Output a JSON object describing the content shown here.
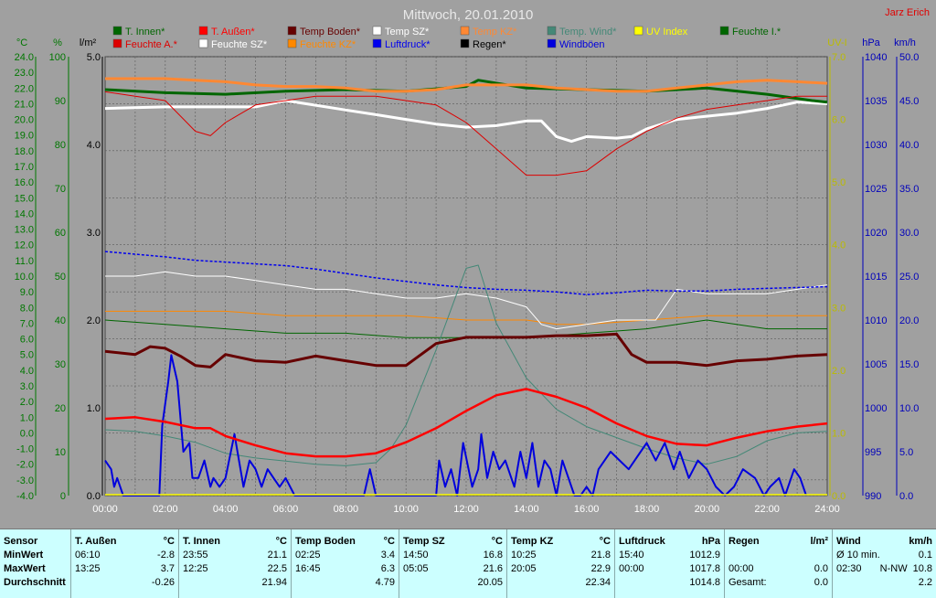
{
  "title": "Mittwoch, 20.01.2010",
  "author": "Jarz Erich",
  "axes": {
    "units": {
      "temp": "°C",
      "pct": "%",
      "rain": "l/m²",
      "uv": "UV-I",
      "hpa": "hPa",
      "kmh": "km/h"
    },
    "temp_ticks": [
      "24.0",
      "23.0",
      "22.0",
      "21.0",
      "20.0",
      "19.0",
      "18.0",
      "17.0",
      "16.0",
      "15.0",
      "14.0",
      "13.0",
      "12.0",
      "11.0",
      "10.0",
      "9.0",
      "8.0",
      "7.0",
      "6.0",
      "5.0",
      "4.0",
      "3.0",
      "2.0",
      "1.0",
      "0.0",
      "-1.0",
      "-2.0",
      "-3.0",
      "-4.0"
    ],
    "pct_ticks": [
      "100",
      "90",
      "80",
      "70",
      "60",
      "50",
      "40",
      "30",
      "20",
      "10",
      "0"
    ],
    "rain_ticks": [
      "5.0",
      "4.0",
      "3.0",
      "2.0",
      "1.0",
      "0.0"
    ],
    "uv_ticks": [
      "7.0",
      "6.0",
      "5.0",
      "4.0",
      "3.0",
      "2.0",
      "1.0",
      "0.0"
    ],
    "hpa_ticks": [
      "1040",
      "1035",
      "1030",
      "1025",
      "1020",
      "1015",
      "1010",
      "1005",
      "1000",
      "995",
      "990"
    ],
    "kmh_ticks": [
      "50.0",
      "45.0",
      "40.0",
      "35.0",
      "30.0",
      "25.0",
      "20.0",
      "15.0",
      "10.0",
      "5.0",
      "0.0"
    ],
    "time_ticks": [
      "00:00",
      "02:00",
      "04:00",
      "06:00",
      "08:00",
      "10:00",
      "12:00",
      "14:00",
      "16:00",
      "18:00",
      "20:00",
      "22:00",
      "24:00"
    ]
  },
  "colors": {
    "t_innen": "#006600",
    "t_aussen": "#ff0000",
    "temp_boden": "#660000",
    "temp_sz": "#ffffff",
    "temp_kz": "#ff8833",
    "temp_wind": "#448877",
    "uv": "#ffff00",
    "feuchte_i": "#006600",
    "feuchte_a": "#dd0000",
    "feuchte_sz": "#ffffff",
    "feuchte_kz": "#ff8800",
    "luftdruck": "#0000ee",
    "regen": "#000000",
    "windboeen": "#0000dd",
    "temp_axis": "#007700",
    "uv_axis": "#bbbb00",
    "hpa_axis": "#0000bb",
    "plot_bg": "#a0a0a0",
    "grid": "#5a5a5a"
  },
  "legend": [
    {
      "label": "T. Innen*",
      "color": "#006600"
    },
    {
      "label": "T. Außen*",
      "color": "#ff0000"
    },
    {
      "label": "Temp Boden*",
      "color": "#660000"
    },
    {
      "label": "Temp SZ*",
      "color": "#ffffff"
    },
    {
      "label": "Temp KZ*",
      "color": "#ff8833"
    },
    {
      "label": "Temp. Wind*",
      "color": "#448877"
    },
    {
      "label": "UV Index",
      "color": "#ffff00"
    },
    {
      "label": "Feuchte I.*",
      "color": "#006600"
    },
    {
      "label": "Feuchte A.*",
      "color": "#dd0000"
    },
    {
      "label": "Feuchte SZ*",
      "color": "#ffffff"
    },
    {
      "label": "Feuchte KZ*",
      "color": "#ff8800"
    },
    {
      "label": "Luftdruck*",
      "color": "#0000ee"
    },
    {
      "label": "Regen*",
      "color": "#000000"
    },
    {
      "label": "Windböen",
      "color": "#0000dd"
    }
  ],
  "chart_data": {
    "type": "line",
    "title": "Mittwoch, 20.01.2010",
    "x_unit": "hours",
    "xlim": [
      0,
      24
    ],
    "temp_ylim": [
      -4,
      24
    ],
    "pct_ylim": [
      0,
      100
    ],
    "rain_ylim": [
      0,
      5
    ],
    "uv_ylim": [
      0,
      7
    ],
    "hpa_ylim": [
      990,
      1040
    ],
    "kmh_ylim": [
      0,
      50
    ],
    "grid": true,
    "series": [
      {
        "name": "T. Innen*",
        "axis": "temp",
        "x": [
          0,
          2,
          4,
          6,
          8,
          10,
          12,
          12.4,
          14,
          16,
          18,
          20,
          22,
          23.5,
          24
        ],
        "y": [
          21.9,
          21.7,
          21.6,
          21.8,
          21.9,
          21.8,
          22.1,
          22.5,
          22.0,
          21.9,
          21.8,
          22.0,
          21.6,
          21.2,
          21.1
        ]
      },
      {
        "name": "T. Außen*",
        "axis": "temp",
        "x": [
          0,
          1,
          2,
          3,
          3.5,
          4,
          5,
          6,
          7,
          8,
          9,
          10,
          11,
          12,
          13,
          14,
          15,
          16,
          17,
          18,
          19,
          20,
          21,
          22,
          23,
          24
        ],
        "y": [
          0.9,
          1.0,
          0.7,
          0.3,
          0.3,
          -0.2,
          -0.8,
          -1.3,
          -1.5,
          -1.5,
          -1.3,
          -0.6,
          0.3,
          1.4,
          2.4,
          2.8,
          2.3,
          1.6,
          0.6,
          -0.2,
          -0.7,
          -0.8,
          -0.3,
          0.1,
          0.4,
          0.6
        ]
      },
      {
        "name": "Temp Boden*",
        "axis": "temp",
        "x": [
          0,
          1,
          1.5,
          2,
          2.5,
          3,
          3.5,
          4,
          5,
          6,
          7,
          8,
          9,
          10,
          11,
          12,
          13,
          14,
          15,
          16,
          17,
          17.5,
          18,
          19,
          20,
          21,
          22,
          23,
          24
        ],
        "y": [
          5.2,
          5.0,
          5.5,
          5.4,
          4.9,
          4.3,
          4.2,
          5.0,
          4.6,
          4.5,
          4.9,
          4.6,
          4.3,
          4.3,
          5.7,
          6.1,
          6.1,
          6.1,
          6.2,
          6.2,
          6.3,
          5.0,
          4.5,
          4.5,
          4.3,
          4.6,
          4.7,
          4.9,
          5.0
        ]
      },
      {
        "name": "Temp SZ*",
        "axis": "temp",
        "x": [
          0,
          2,
          3,
          4,
          5,
          6,
          7,
          8,
          9,
          10,
          11,
          12,
          13,
          14,
          14.5,
          15,
          15.5,
          16,
          17,
          17.5,
          18,
          19,
          20,
          21,
          22,
          23,
          24
        ],
        "y": [
          20.7,
          20.8,
          20.8,
          20.8,
          20.8,
          21.2,
          20.9,
          20.6,
          20.3,
          20.0,
          19.7,
          19.5,
          19.6,
          19.9,
          19.9,
          18.9,
          18.6,
          18.9,
          18.8,
          18.9,
          19.4,
          20.0,
          20.2,
          20.4,
          20.7,
          21.1,
          21.0
        ]
      },
      {
        "name": "Temp KZ*",
        "axis": "temp",
        "x": [
          0,
          1,
          2,
          3,
          4,
          5,
          6,
          7,
          8,
          9,
          10,
          11,
          12,
          13,
          14,
          15,
          16,
          17,
          18,
          19,
          20,
          21,
          22,
          23,
          24
        ],
        "y": [
          22.6,
          22.6,
          22.6,
          22.5,
          22.4,
          22.2,
          22.1,
          22.1,
          22.0,
          21.8,
          21.8,
          21.9,
          22.2,
          22.2,
          22.2,
          22.0,
          21.9,
          21.8,
          21.8,
          22.0,
          22.2,
          22.4,
          22.5,
          22.4,
          22.3
        ]
      },
      {
        "name": "Temp. Wind*",
        "axis": "temp",
        "x": [
          0,
          1,
          2,
          3,
          4,
          5,
          6,
          7,
          8,
          9,
          9.5,
          10,
          11,
          12,
          12.4,
          13,
          14,
          15,
          16,
          17,
          18,
          19,
          20,
          21,
          22,
          23,
          24
        ],
        "y": [
          0.2,
          0.1,
          -0.2,
          -0.6,
          -1.3,
          -1.6,
          -1.8,
          -2.0,
          -2.1,
          -1.9,
          -1.0,
          0.5,
          5.3,
          10.5,
          10.7,
          7.0,
          3.5,
          1.5,
          0.4,
          -0.3,
          -1.0,
          -1.6,
          -2.0,
          -1.5,
          -0.5,
          0.0,
          0.1
        ]
      },
      {
        "name": "Feuchte I.*",
        "axis": "pct",
        "x": [
          0,
          2,
          4,
          6,
          8,
          10,
          12,
          14,
          16,
          18,
          20,
          22,
          24
        ],
        "y": [
          40,
          39,
          38,
          37,
          37,
          36,
          36,
          36,
          37,
          38,
          40,
          38,
          38
        ]
      },
      {
        "name": "Feuchte A.*",
        "axis": "pct",
        "x": [
          0,
          1,
          2,
          3,
          3.5,
          4,
          5,
          6,
          7,
          8,
          9,
          10,
          11,
          12,
          13,
          14,
          15,
          16,
          17,
          18,
          19,
          20,
          21,
          22,
          23,
          24
        ],
        "y": [
          92,
          91,
          90,
          83,
          82,
          85,
          89,
          90,
          91,
          91,
          91,
          90,
          89,
          85,
          79,
          73,
          73,
          74,
          79,
          83,
          86,
          88,
          89,
          90,
          91,
          91
        ]
      },
      {
        "name": "Feuchte SZ*",
        "axis": "pct",
        "x": [
          0,
          1,
          2,
          3,
          4,
          5,
          6,
          7,
          8,
          9,
          10,
          11,
          12,
          13,
          14,
          14.5,
          15,
          16,
          17,
          18,
          18.3,
          19,
          20,
          21,
          22,
          23,
          24
        ],
        "y": [
          50,
          50,
          51,
          50,
          50,
          49,
          48,
          47,
          47,
          46,
          45,
          45,
          46,
          45,
          43,
          39,
          38,
          39,
          40,
          40,
          40,
          47,
          46,
          46,
          46,
          47,
          48
        ]
      },
      {
        "name": "Feuchte KZ*",
        "axis": "pct",
        "x": [
          0,
          2,
          4,
          6,
          8,
          10,
          12,
          14,
          15,
          16,
          18,
          20,
          22,
          24
        ],
        "y": [
          42,
          42,
          42,
          41,
          41,
          41,
          40,
          40,
          39,
          39,
          40,
          41,
          41,
          41
        ]
      },
      {
        "name": "Luftdruck*",
        "axis": "hpa",
        "x": [
          0,
          1,
          2,
          3,
          4,
          5,
          6,
          7,
          8,
          9,
          10,
          11,
          12,
          13,
          14,
          15,
          16,
          17,
          18,
          19,
          20,
          21,
          22,
          23,
          24
        ],
        "y": [
          1017.8,
          1017.5,
          1017.2,
          1016.8,
          1016.6,
          1016.4,
          1016.2,
          1015.8,
          1015.3,
          1014.8,
          1014.4,
          1014.0,
          1013.7,
          1013.5,
          1013.4,
          1013.2,
          1012.9,
          1013.1,
          1013.4,
          1013.3,
          1013.3,
          1013.5,
          1013.6,
          1013.7,
          1013.8
        ]
      },
      {
        "name": "Windböen",
        "axis": "kmh",
        "x": [
          0,
          0.2,
          0.3,
          0.4,
          0.6,
          1.8,
          1.9,
          2.1,
          2.2,
          2.4,
          2.5,
          2.6,
          2.8,
          2.9,
          3.1,
          3.3,
          3.5,
          3.6,
          3.8,
          4,
          4.3,
          4.6,
          4.8,
          5.0,
          5.2,
          5.4,
          5.6,
          5.8,
          6.0,
          6.3,
          6.6,
          8.6,
          8.8,
          9.0,
          9.1,
          11.0,
          11.1,
          11.3,
          11.5,
          11.7,
          11.9,
          12.2,
          12.4,
          12.5,
          12.7,
          12.9,
          13.1,
          13.3,
          13.6,
          13.8,
          14.0,
          14.2,
          14.4,
          14.6,
          14.8,
          15.0,
          15.2,
          15.4,
          15.6,
          15.8,
          16.0,
          16.2,
          16.4,
          16.8,
          17.1,
          17.4,
          17.8,
          18.0,
          18.3,
          18.6,
          18.9,
          19.1,
          19.4,
          19.7,
          20.0,
          20.3,
          20.6,
          20.9,
          21.2,
          21.6,
          21.9,
          22.1,
          22.4,
          22.6,
          22.9,
          23.1,
          23.3
        ],
        "y": [
          4,
          3,
          1,
          2,
          0,
          0,
          8,
          13,
          16,
          13,
          9,
          5,
          6,
          2,
          2,
          4,
          1,
          2,
          1,
          2,
          7,
          1,
          4,
          3,
          1,
          3,
          2,
          1,
          2,
          0,
          0,
          0,
          3,
          0,
          0,
          0,
          4,
          1,
          3,
          0,
          6,
          1,
          3,
          7,
          2,
          5,
          3,
          4,
          1,
          5,
          2,
          6,
          1,
          4,
          3,
          0,
          4,
          2,
          0,
          0,
          1,
          0,
          3,
          5,
          4,
          3,
          5,
          6,
          4,
          6,
          3,
          5,
          2,
          4,
          3,
          1,
          0,
          1,
          3,
          2,
          0,
          1,
          2,
          0,
          3,
          2,
          0
        ]
      }
    ],
    "x_ticks": [
      "00:00",
      "02:00",
      "04:00",
      "06:00",
      "08:00",
      "10:00",
      "12:00",
      "14:00",
      "16:00",
      "18:00",
      "20:00",
      "22:00",
      "24:00"
    ]
  },
  "table": {
    "row_labels": {
      "header": "Sensor",
      "min": "MinWert",
      "max": "MaxWert",
      "avg": "Durchschnitt"
    },
    "columns": [
      {
        "name": "T. Außen",
        "unit": "°C",
        "min_time": "06:10",
        "min_val": "-2.8",
        "max_time": "13:25",
        "max_val": "3.7",
        "avg": "-0.26"
      },
      {
        "name": "T. Innen",
        "unit": "°C",
        "min_time": "23:55",
        "min_val": "21.1",
        "max_time": "12:25",
        "max_val": "22.5",
        "avg": "21.94"
      },
      {
        "name": "Temp Boden",
        "unit": "°C",
        "min_time": "02:25",
        "min_val": "3.4",
        "max_time": "16:45",
        "max_val": "6.3",
        "avg": "4.79"
      },
      {
        "name": "Temp SZ",
        "unit": "°C",
        "min_time": "14:50",
        "min_val": "16.8",
        "max_time": "05:05",
        "max_val": "21.6",
        "avg": "20.05"
      },
      {
        "name": "Temp KZ",
        "unit": "°C",
        "min_time": "10:25",
        "min_val": "21.8",
        "max_time": "20:05",
        "max_val": "22.9",
        "avg": "22.34"
      },
      {
        "name": "Luftdruck",
        "unit": "hPa",
        "min_time": "15:40",
        "min_val": "1012.9",
        "max_time": "00:00",
        "max_val": "1017.8",
        "avg": "1014.8"
      },
      {
        "name": "Regen",
        "unit": "l/m²",
        "min_time": "",
        "min_val": "",
        "max_time": "00:00",
        "max_val": "0.0",
        "avg_label": "Gesamt:",
        "avg": "0.0"
      },
      {
        "name": "Wind",
        "unit": "km/h",
        "min_time": "Ø 10 min.",
        "min_val": "0.1",
        "max_time": "02:30",
        "max_mid": "N-NW",
        "max_val": "10.8",
        "avg": "2.2"
      }
    ]
  }
}
